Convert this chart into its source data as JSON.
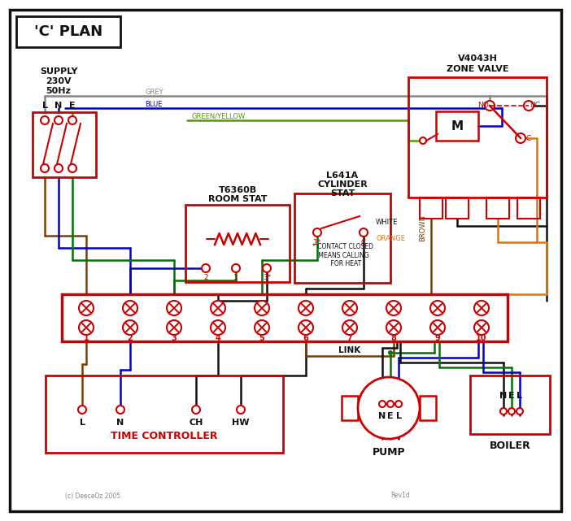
{
  "bg": "#ffffff",
  "red": "#cc0000",
  "black": "#111111",
  "blue": "#0000cc",
  "green": "#007700",
  "grey": "#888888",
  "brown": "#7b3f00",
  "orange": "#e07800",
  "gy": "#559900",
  "title": "'C' PLAN",
  "footnote": "(c) DeeceOz 2005",
  "rev": "Rev1d"
}
